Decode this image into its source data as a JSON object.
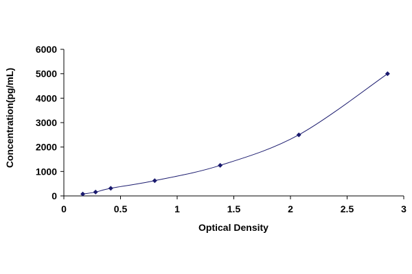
{
  "chart_data": {
    "type": "scatter",
    "title": "",
    "xlabel": "Optical Density",
    "ylabel": "Concentration(pg/mL)",
    "xlim": [
      0,
      3
    ],
    "ylim": [
      0,
      6000
    ],
    "xticks": [
      0,
      0.5,
      1,
      1.5,
      2,
      2.5,
      3
    ],
    "xtick_labels": [
      "0",
      "0.5",
      "1",
      "1.5",
      "2",
      "2.5",
      "3"
    ],
    "yticks": [
      0,
      1000,
      2000,
      3000,
      4000,
      5000,
      6000
    ],
    "ytick_labels": [
      "0",
      "1000",
      "2000",
      "3000",
      "4000",
      "5000",
      "6000"
    ],
    "grid": false,
    "legend": "none",
    "fit_curve": "smooth",
    "series": [
      {
        "points": [
          {
            "x": 0.167,
            "y": 78
          },
          {
            "x": 0.28,
            "y": 156
          },
          {
            "x": 0.414,
            "y": 313
          },
          {
            "x": 0.802,
            "y": 625
          },
          {
            "x": 1.38,
            "y": 1250
          },
          {
            "x": 2.074,
            "y": 2500
          },
          {
            "x": 2.857,
            "y": 5000
          }
        ]
      }
    ],
    "colors": {
      "marker": "#1a1a6e",
      "curve": "#1a1a6e",
      "axis": "#000000"
    }
  }
}
